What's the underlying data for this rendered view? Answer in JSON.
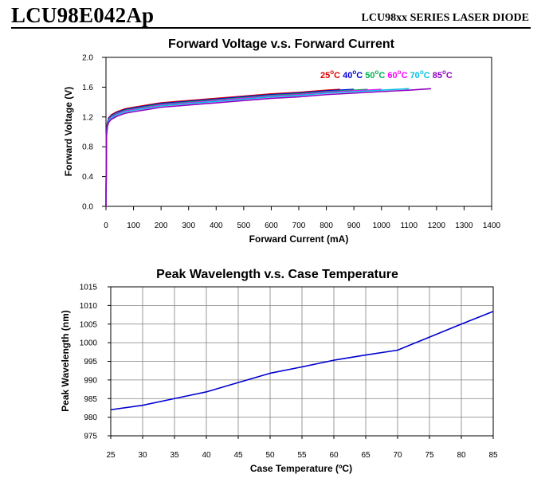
{
  "header": {
    "part_number": "LCU98E042Ap",
    "series": "LCU98xx SERIES LASER DIODE"
  },
  "chart_data": [
    {
      "type": "line",
      "title": "Forward Voltage v.s. Forward Current",
      "xlabel": "Forward Current (mA)",
      "ylabel": "Forward Voltage (V)",
      "xlim": [
        0,
        1400
      ],
      "ylim": [
        0,
        2.0
      ],
      "x_ticks": [
        "0",
        "100",
        "200",
        "300",
        "400",
        "500",
        "600",
        "700",
        "800",
        "900",
        "1000",
        "1100",
        "1200",
        "1300",
        "1400"
      ],
      "y_ticks": [
        "0.0",
        "0.4",
        "0.8",
        "1.2",
        "1.6",
        "2.0"
      ],
      "legend_position": "top-right",
      "series": [
        {
          "name": "25",
          "color": "#e00000",
          "x": [
            0,
            2,
            5,
            10,
            20,
            40,
            70,
            100,
            150,
            200,
            300,
            400,
            500,
            600,
            700,
            800,
            850
          ],
          "y": [
            0.0,
            1.0,
            1.12,
            1.19,
            1.23,
            1.27,
            1.31,
            1.33,
            1.36,
            1.39,
            1.42,
            1.45,
            1.48,
            1.51,
            1.53,
            1.56,
            1.57
          ]
        },
        {
          "name": "40",
          "color": "#0000e0",
          "x": [
            0,
            2,
            5,
            10,
            20,
            40,
            70,
            100,
            150,
            200,
            300,
            400,
            500,
            600,
            700,
            800,
            900
          ],
          "y": [
            0.0,
            0.99,
            1.11,
            1.18,
            1.22,
            1.26,
            1.3,
            1.32,
            1.35,
            1.38,
            1.41,
            1.44,
            1.47,
            1.5,
            1.52,
            1.55,
            1.57
          ]
        },
        {
          "name": "50",
          "color": "#00b050",
          "x": [
            0,
            2,
            5,
            10,
            20,
            40,
            70,
            100,
            150,
            200,
            300,
            400,
            500,
            600,
            700,
            800,
            900,
            950
          ],
          "y": [
            0.0,
            0.98,
            1.1,
            1.17,
            1.21,
            1.25,
            1.29,
            1.31,
            1.34,
            1.37,
            1.4,
            1.43,
            1.46,
            1.49,
            1.51,
            1.54,
            1.56,
            1.57
          ]
        },
        {
          "name": "60",
          "color": "#ff00ff",
          "x": [
            0,
            2,
            5,
            10,
            20,
            40,
            70,
            100,
            150,
            200,
            300,
            400,
            500,
            600,
            700,
            800,
            900,
            1000
          ],
          "y": [
            0.0,
            0.97,
            1.09,
            1.16,
            1.2,
            1.24,
            1.28,
            1.3,
            1.33,
            1.36,
            1.39,
            1.42,
            1.45,
            1.48,
            1.5,
            1.53,
            1.55,
            1.57
          ]
        },
        {
          "name": "70",
          "color": "#00c0e0",
          "x": [
            0,
            2,
            5,
            10,
            20,
            40,
            70,
            100,
            150,
            200,
            300,
            400,
            500,
            600,
            700,
            800,
            900,
            1000,
            1100
          ],
          "y": [
            0.0,
            0.96,
            1.08,
            1.15,
            1.19,
            1.23,
            1.27,
            1.29,
            1.32,
            1.35,
            1.38,
            1.41,
            1.44,
            1.47,
            1.49,
            1.52,
            1.54,
            1.56,
            1.58
          ]
        },
        {
          "name": "85",
          "color": "#9000c0",
          "x": [
            0,
            2,
            5,
            10,
            20,
            40,
            70,
            100,
            150,
            200,
            300,
            400,
            500,
            600,
            700,
            800,
            900,
            1000,
            1100,
            1180
          ],
          "y": [
            0.0,
            0.95,
            1.07,
            1.13,
            1.17,
            1.21,
            1.25,
            1.27,
            1.3,
            1.33,
            1.36,
            1.39,
            1.42,
            1.45,
            1.47,
            1.5,
            1.52,
            1.54,
            1.56,
            1.58
          ]
        }
      ]
    },
    {
      "type": "line",
      "title": "Peak Wavelength v.s. Case Temperature",
      "xlabel": "Case Temperature (ºC)",
      "ylabel": "Peak Wavelength (nm)",
      "xlim": [
        25,
        85
      ],
      "ylim": [
        975,
        1015
      ],
      "x_ticks": [
        "25",
        "30",
        "35",
        "40",
        "45",
        "50",
        "55",
        "60",
        "65",
        "70",
        "75",
        "80",
        "85"
      ],
      "y_ticks": [
        "975",
        "980",
        "985",
        "990",
        "995",
        "1000",
        "1005",
        "1010",
        "1015"
      ],
      "grid": true,
      "series": [
        {
          "name": "Peak Wavelength",
          "color": "#0000d0",
          "x": [
            25,
            30,
            35,
            40,
            45,
            50,
            55,
            60,
            65,
            70,
            75,
            80,
            85
          ],
          "y": [
            982.0,
            983.2,
            985.0,
            986.8,
            989.3,
            991.8,
            993.5,
            995.3,
            996.7,
            998.0,
            1001.5,
            1005.0,
            1008.4
          ]
        }
      ]
    }
  ]
}
